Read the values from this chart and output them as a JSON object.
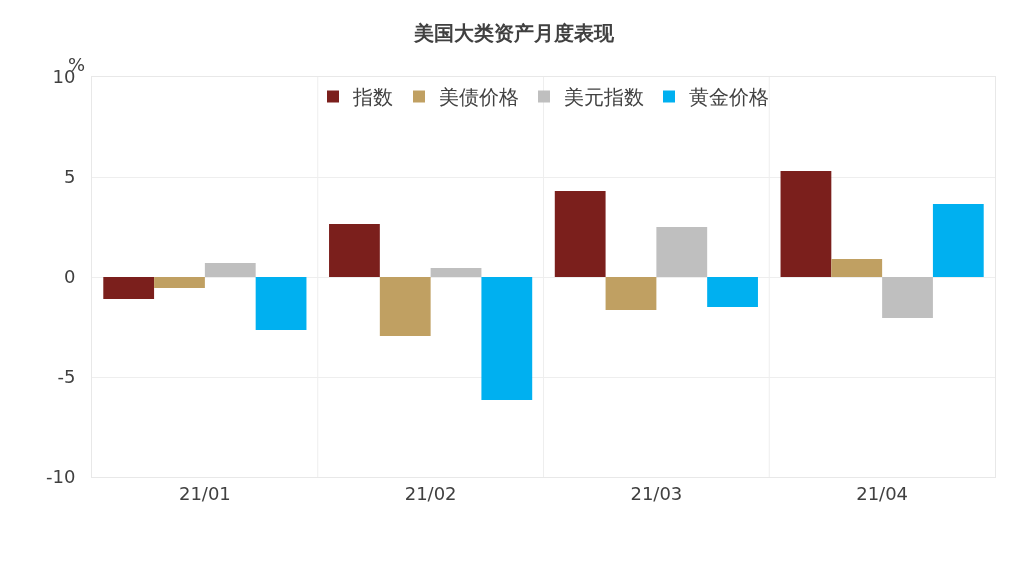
{
  "chart_data": {
    "type": "bar",
    "title": "美国大类资产月度表现",
    "ylabel": "%",
    "categories": [
      "21/01",
      "21/02",
      "21/03",
      "21/04"
    ],
    "series": [
      {
        "name": "指数",
        "color": "#7b1f1c",
        "values": [
          -1.1,
          2.65,
          4.3,
          5.3
        ]
      },
      {
        "name": "美债价格",
        "color": "#c0a062",
        "values": [
          -0.55,
          -2.95,
          -1.65,
          0.9
        ]
      },
      {
        "name": "美元指数",
        "color": "#bfbfbf",
        "values": [
          0.7,
          0.45,
          2.5,
          -2.05
        ]
      },
      {
        "name": "黄金价格",
        "color": "#00b0f0",
        "values": [
          -2.65,
          -6.15,
          -1.5,
          3.65
        ]
      }
    ],
    "ylim": [
      -10,
      10
    ],
    "yticks": [
      -10,
      -5,
      0,
      5,
      10
    ],
    "grid": true,
    "legend": "top"
  }
}
